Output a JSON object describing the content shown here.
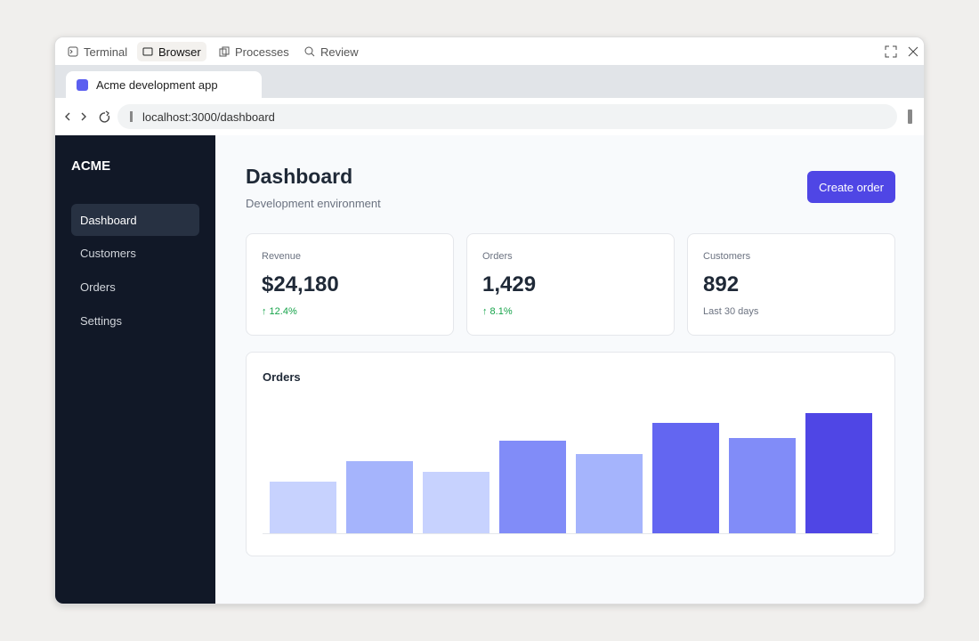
{
  "toolbar": {
    "tabs": [
      "Terminal",
      "Browser",
      "Processes",
      "Review"
    ]
  },
  "browser": {
    "tab_title": "Acme development app",
    "url": "localhost:3000/dashboard"
  },
  "sidebar": {
    "brand": "ACME",
    "items": [
      "Dashboard",
      "Customers",
      "Orders",
      "Settings"
    ]
  },
  "header": {
    "title": "Dashboard",
    "subtitle": "Development environment",
    "button": "Create order"
  },
  "stats": [
    {
      "label": "Revenue",
      "value": "$24,180",
      "note": "↑ 12.4%"
    },
    {
      "label": "Orders",
      "value": "1,429",
      "note": "↑ 8.1%"
    },
    {
      "label": "Customers",
      "value": "892",
      "note": "Last 30 days"
    }
  ],
  "chart_data": {
    "type": "bar",
    "title": "Orders",
    "values": [
      58,
      81,
      69,
      104,
      89,
      124,
      107,
      135
    ],
    "colors": [
      "#c7d2fe",
      "#a5b4fc",
      "#c7d2fe",
      "#818cf8",
      "#a5b4fc",
      "#6366f1",
      "#818cf8",
      "#4f46e5"
    ]
  }
}
